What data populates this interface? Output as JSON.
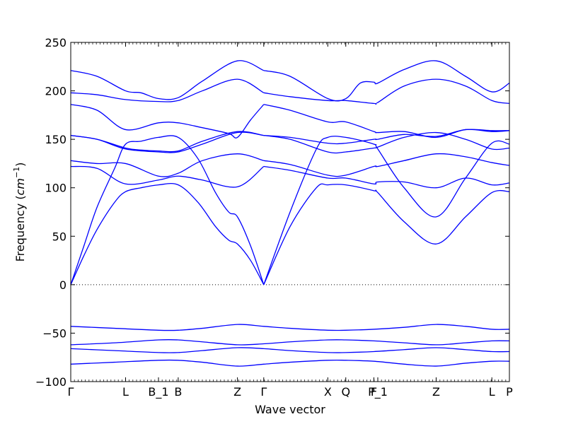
{
  "chart_data": {
    "type": "line",
    "title": "",
    "xlabel": "Wave vector",
    "ylabel": "Frequency ($cm^{-1}$)",
    "ylabel_text": "Frequency (",
    "ylabel_unit": "cm",
    "ylabel_exp": "−1",
    "ylabel_close": ")",
    "ylim": [
      -100,
      250
    ],
    "yticks": [
      -100,
      -50,
      0,
      50,
      100,
      150,
      200,
      250
    ],
    "xlim": [
      0,
      1
    ],
    "high_symmetry_points": [
      {
        "label": "Γ",
        "x": 0.0
      },
      {
        "label": "L",
        "x": 0.125
      },
      {
        "label": "B_1",
        "x": 0.2
      },
      {
        "label": "B",
        "x": 0.245
      },
      {
        "label": "Z",
        "x": 0.38
      },
      {
        "label": "Γ",
        "x": 0.44
      },
      {
        "label": "X",
        "x": 0.586
      },
      {
        "label": "Q",
        "x": 0.627
      },
      {
        "label": "F",
        "x": 0.691
      },
      {
        "label": "P_1",
        "x": 0.7
      },
      {
        "label": "Z",
        "x": 0.833
      },
      {
        "label": "L",
        "x": 0.96
      },
      {
        "label": "P",
        "x": 1.0
      }
    ],
    "zero_line": true,
    "line_color": "#0000ff",
    "series": [
      {
        "x": [
          0,
          0.03,
          0.06,
          0.1,
          0.125,
          0.16,
          0.2,
          0.245,
          0.29,
          0.33,
          0.36,
          0.38,
          0.41,
          0.44
        ],
        "y": [
          0,
          30,
          57,
          85,
          96,
          100,
          103,
          103,
          85,
          60,
          46,
          42,
          25,
          0
        ]
      },
      {
        "x": [
          0,
          0.03,
          0.06,
          0.1,
          0.125,
          0.16,
          0.2,
          0.245,
          0.29,
          0.33,
          0.36,
          0.38,
          0.41,
          0.44
        ],
        "y": [
          0,
          40,
          80,
          120,
          145,
          148,
          152,
          152,
          130,
          95,
          75,
          70,
          40,
          0
        ]
      },
      {
        "x": [
          0,
          0.06,
          0.125,
          0.2,
          0.245,
          0.3,
          0.38,
          0.44
        ],
        "y": [
          122,
          120,
          104,
          108,
          112,
          108,
          101,
          122
        ]
      },
      {
        "x": [
          0,
          0.06,
          0.125,
          0.2,
          0.245,
          0.3,
          0.38,
          0.44
        ],
        "y": [
          128,
          125,
          125,
          112,
          115,
          128,
          135,
          128
        ]
      },
      {
        "x": [
          0,
          0.06,
          0.125,
          0.2,
          0.245,
          0.3,
          0.38,
          0.44
        ],
        "y": [
          154,
          150,
          140,
          137,
          137,
          145,
          157,
          154
        ]
      },
      {
        "x": [
          0,
          0.06,
          0.125,
          0.16,
          0.2,
          0.245,
          0.3,
          0.38,
          0.44
        ],
        "y": [
          154,
          150,
          141,
          139,
          138,
          138,
          148,
          158,
          154
        ]
      },
      {
        "x": [
          0,
          0.06,
          0.125,
          0.2,
          0.245,
          0.3,
          0.36,
          0.38,
          0.41,
          0.44
        ],
        "y": [
          186,
          180,
          160,
          167,
          167,
          162,
          156,
          152,
          170,
          186
        ]
      },
      {
        "x": [
          0,
          0.06,
          0.125,
          0.2,
          0.245,
          0.3,
          0.38,
          0.44
        ],
        "y": [
          198,
          196,
          191,
          189,
          190,
          200,
          212,
          198
        ]
      },
      {
        "x": [
          0,
          0.06,
          0.125,
          0.16,
          0.2,
          0.245,
          0.3,
          0.38,
          0.44
        ],
        "y": [
          221,
          215,
          200,
          198,
          192,
          193,
          210,
          231,
          221
        ]
      },
      {
        "x": [
          0.44,
          0.5,
          0.56,
          0.586,
          0.627,
          0.691,
          0.7,
          0.76,
          0.833,
          0.9,
          0.96,
          1.0
        ],
        "y": [
          0,
          60,
          100,
          103,
          103,
          97,
          95,
          65,
          42,
          70,
          95,
          96
        ]
      },
      {
        "x": [
          0.44,
          0.5,
          0.56,
          0.586,
          0.627,
          0.691,
          0.7,
          0.76,
          0.833,
          0.9,
          0.96,
          1.0
        ],
        "y": [
          0,
          75,
          140,
          152,
          152,
          145,
          140,
          100,
          70,
          110,
          146,
          145
        ]
      },
      {
        "x": [
          0.44,
          0.5,
          0.586,
          0.627,
          0.691,
          0.7,
          0.76,
          0.833,
          0.9,
          0.96,
          1.0
        ],
        "y": [
          122,
          118,
          110,
          110,
          104,
          106,
          106,
          100,
          110,
          103,
          105
        ]
      },
      {
        "x": [
          0.44,
          0.5,
          0.586,
          0.627,
          0.691,
          0.7,
          0.76,
          0.833,
          0.9,
          0.96,
          1.0
        ],
        "y": [
          128,
          124,
          113,
          113,
          122,
          122,
          128,
          135,
          132,
          126,
          123
        ]
      },
      {
        "x": [
          0.44,
          0.5,
          0.586,
          0.627,
          0.691,
          0.7,
          0.76,
          0.833,
          0.9,
          0.96,
          1.0
        ],
        "y": [
          154,
          150,
          137,
          137,
          141,
          142,
          152,
          157,
          150,
          140,
          141
        ]
      },
      {
        "x": [
          0.44,
          0.5,
          0.586,
          0.627,
          0.691,
          0.7,
          0.76,
          0.833,
          0.9,
          0.96,
          1.0
        ],
        "y": [
          154,
          152,
          146,
          146,
          150,
          150,
          155,
          153,
          160,
          159,
          159
        ]
      },
      {
        "x": [
          0.44,
          0.5,
          0.586,
          0.627,
          0.691,
          0.7,
          0.76,
          0.833,
          0.9,
          0.96,
          1.0
        ],
        "y": [
          186,
          180,
          168,
          168,
          158,
          157,
          158,
          152,
          160,
          158,
          159
        ]
      },
      {
        "x": [
          0.44,
          0.5,
          0.586,
          0.627,
          0.691,
          0.7,
          0.76,
          0.833,
          0.9,
          0.96,
          1.0
        ],
        "y": [
          198,
          194,
          190,
          190,
          187,
          188,
          205,
          212,
          205,
          190,
          187
        ]
      },
      {
        "x": [
          0.44,
          0.5,
          0.586,
          0.627,
          0.66,
          0.691,
          0.7,
          0.76,
          0.833,
          0.9,
          0.96,
          1.0
        ],
        "y": [
          221,
          215,
          192,
          192,
          208,
          209,
          208,
          222,
          231,
          215,
          199,
          208
        ]
      },
      {
        "x": [
          0,
          0.1,
          0.2,
          0.245,
          0.3,
          0.38,
          0.44,
          0.5,
          0.586,
          0.627,
          0.691,
          0.76,
          0.833,
          0.9,
          0.96,
          1.0
        ],
        "y": [
          -43,
          -45,
          -47,
          -47,
          -45,
          -41,
          -43,
          -45,
          -47,
          -47,
          -46,
          -44,
          -41,
          -43,
          -46,
          -46
        ]
      },
      {
        "x": [
          0,
          0.1,
          0.2,
          0.245,
          0.3,
          0.38,
          0.44,
          0.5,
          0.586,
          0.627,
          0.691,
          0.76,
          0.833,
          0.9,
          0.96,
          1.0
        ],
        "y": [
          -62,
          -60,
          -57,
          -57,
          -59,
          -62,
          -61,
          -59,
          -57,
          -57,
          -58,
          -60,
          -62,
          -60,
          -58,
          -58
        ]
      },
      {
        "x": [
          0,
          0.1,
          0.2,
          0.245,
          0.3,
          0.38,
          0.44,
          0.5,
          0.586,
          0.627,
          0.691,
          0.76,
          0.833,
          0.9,
          0.96,
          1.0
        ],
        "y": [
          -66,
          -68,
          -70,
          -70,
          -68,
          -65,
          -66,
          -68,
          -70,
          -70,
          -69,
          -67,
          -65,
          -67,
          -69,
          -69
        ]
      },
      {
        "x": [
          0,
          0.1,
          0.2,
          0.245,
          0.3,
          0.38,
          0.44,
          0.5,
          0.586,
          0.627,
          0.691,
          0.76,
          0.833,
          0.9,
          0.96,
          1.0
        ],
        "y": [
          -82,
          -80,
          -78,
          -78,
          -80,
          -84,
          -82,
          -80,
          -78,
          -78,
          -79,
          -82,
          -84,
          -81,
          -79,
          -79
        ]
      }
    ]
  }
}
